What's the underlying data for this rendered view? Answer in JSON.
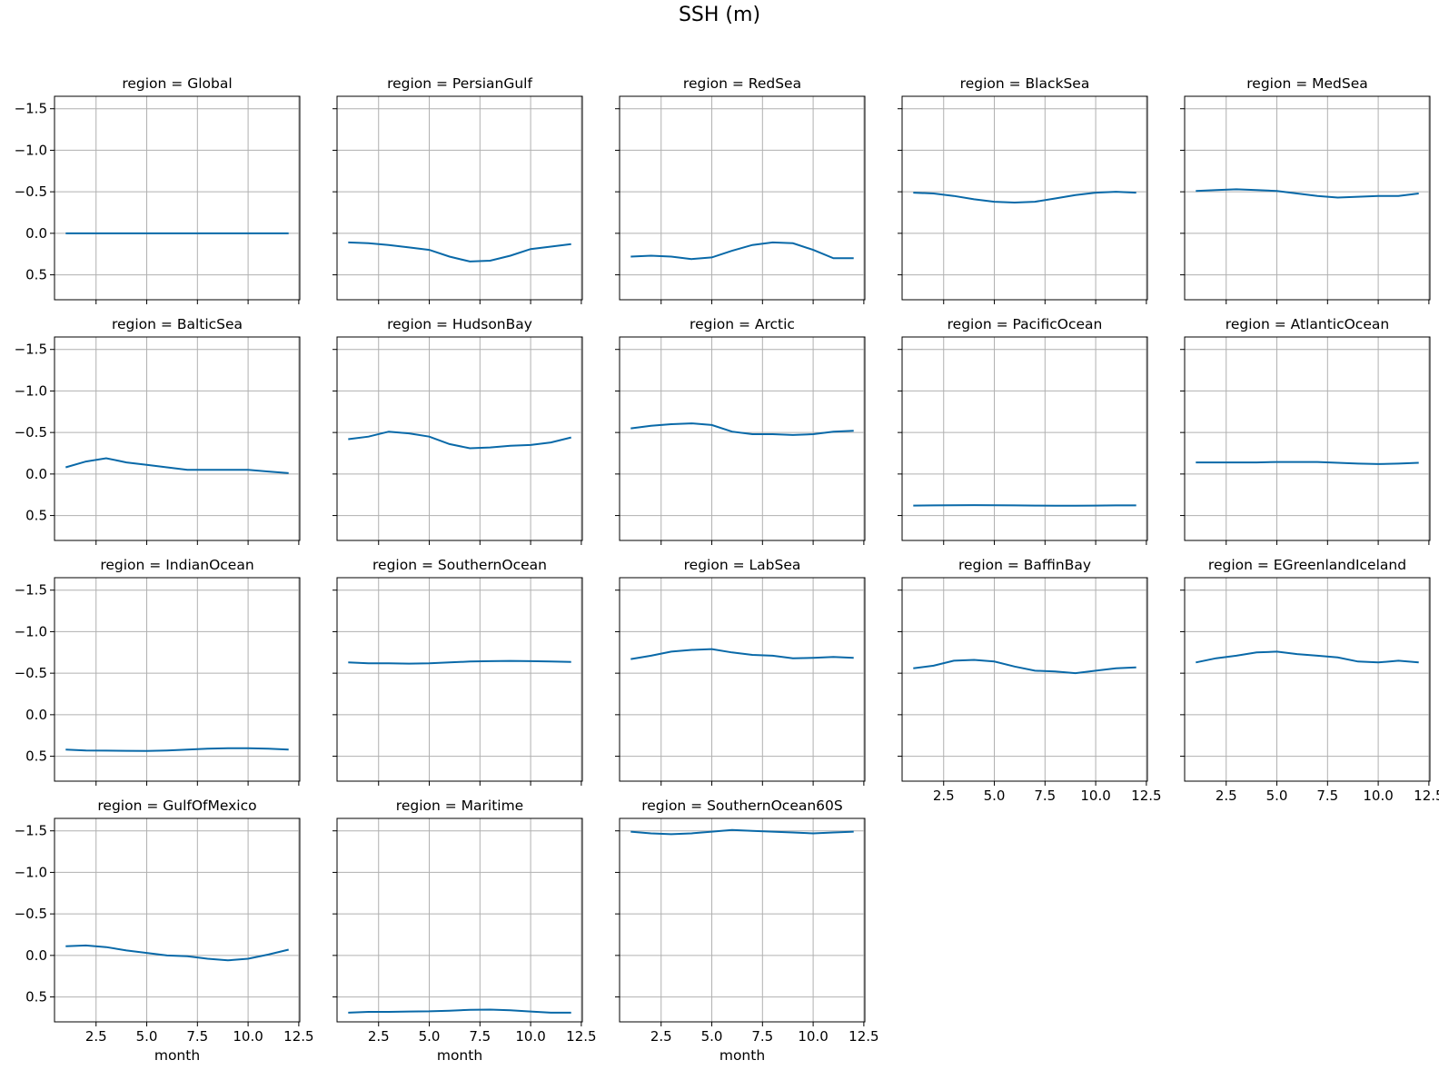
{
  "figure_title": "SSH (m)",
  "line_color": "#0969a8",
  "chart_data": [
    {
      "type": "line",
      "title": "region = Global",
      "x": [
        1,
        2,
        3,
        4,
        5,
        6,
        7,
        8,
        9,
        10,
        11,
        12
      ],
      "values": [
        0.0,
        0.0,
        0.0,
        0.0,
        0.0,
        0.0,
        0.0,
        0.0,
        0.0,
        0.0,
        0.0,
        0.0
      ],
      "xlabel": "",
      "ylabel": "",
      "xlim": [
        0.45,
        12.55
      ],
      "ylim": [
        0.8,
        -1.65
      ],
      "y_inverted": true,
      "grid": true
    },
    {
      "type": "line",
      "title": "region = PersianGulf",
      "x": [
        1,
        2,
        3,
        4,
        5,
        6,
        7,
        8,
        9,
        10,
        11,
        12
      ],
      "values": [
        0.11,
        0.12,
        0.14,
        0.17,
        0.2,
        0.28,
        0.34,
        0.33,
        0.27,
        0.19,
        0.16,
        0.13
      ],
      "xlabel": "",
      "ylabel": "",
      "xlim": [
        0.45,
        12.55
      ],
      "ylim": [
        0.8,
        -1.65
      ],
      "y_inverted": true,
      "grid": true
    },
    {
      "type": "line",
      "title": "region = RedSea",
      "x": [
        1,
        2,
        3,
        4,
        5,
        6,
        7,
        8,
        9,
        10,
        11,
        12
      ],
      "values": [
        0.28,
        0.27,
        0.28,
        0.31,
        0.29,
        0.21,
        0.14,
        0.11,
        0.12,
        0.2,
        0.3,
        0.3
      ],
      "xlabel": "",
      "ylabel": "",
      "xlim": [
        0.45,
        12.55
      ],
      "ylim": [
        0.8,
        -1.65
      ],
      "y_inverted": true,
      "grid": true
    },
    {
      "type": "line",
      "title": "region = BlackSea",
      "x": [
        1,
        2,
        3,
        4,
        5,
        6,
        7,
        8,
        9,
        10,
        11,
        12
      ],
      "values": [
        -0.49,
        -0.48,
        -0.45,
        -0.41,
        -0.38,
        -0.37,
        -0.38,
        -0.42,
        -0.46,
        -0.49,
        -0.5,
        -0.49
      ],
      "xlabel": "",
      "ylabel": "",
      "xlim": [
        0.45,
        12.55
      ],
      "ylim": [
        0.8,
        -1.65
      ],
      "y_inverted": true,
      "grid": true
    },
    {
      "type": "line",
      "title": "region = MedSea",
      "x": [
        1,
        2,
        3,
        4,
        5,
        6,
        7,
        8,
        9,
        10,
        11,
        12
      ],
      "values": [
        -0.51,
        -0.52,
        -0.53,
        -0.52,
        -0.51,
        -0.48,
        -0.45,
        -0.43,
        -0.44,
        -0.45,
        -0.45,
        -0.48
      ],
      "xlabel": "",
      "ylabel": "",
      "xlim": [
        0.45,
        12.55
      ],
      "ylim": [
        0.8,
        -1.65
      ],
      "y_inverted": true,
      "grid": true
    },
    {
      "type": "line",
      "title": "region = BalticSea",
      "x": [
        1,
        2,
        3,
        4,
        5,
        6,
        7,
        8,
        9,
        10,
        11,
        12
      ],
      "values": [
        -0.08,
        -0.15,
        -0.19,
        -0.14,
        -0.11,
        -0.08,
        -0.05,
        -0.05,
        -0.05,
        -0.05,
        -0.03,
        -0.01
      ],
      "xlabel": "",
      "ylabel": "",
      "xlim": [
        0.45,
        12.55
      ],
      "ylim": [
        0.8,
        -1.65
      ],
      "y_inverted": true,
      "grid": true
    },
    {
      "type": "line",
      "title": "region = HudsonBay",
      "x": [
        1,
        2,
        3,
        4,
        5,
        6,
        7,
        8,
        9,
        10,
        11,
        12
      ],
      "values": [
        -0.42,
        -0.45,
        -0.51,
        -0.49,
        -0.45,
        -0.36,
        -0.31,
        -0.32,
        -0.34,
        -0.35,
        -0.38,
        -0.44
      ],
      "xlabel": "",
      "ylabel": "",
      "xlim": [
        0.45,
        12.55
      ],
      "ylim": [
        0.8,
        -1.65
      ],
      "y_inverted": true,
      "grid": true
    },
    {
      "type": "line",
      "title": "region = Arctic",
      "x": [
        1,
        2,
        3,
        4,
        5,
        6,
        7,
        8,
        9,
        10,
        11,
        12
      ],
      "values": [
        -0.55,
        -0.58,
        -0.6,
        -0.61,
        -0.59,
        -0.51,
        -0.48,
        -0.48,
        -0.47,
        -0.48,
        -0.51,
        -0.52
      ],
      "xlabel": "",
      "ylabel": "",
      "xlim": [
        0.45,
        12.55
      ],
      "ylim": [
        0.8,
        -1.65
      ],
      "y_inverted": true,
      "grid": true
    },
    {
      "type": "line",
      "title": "region = PacificOcean",
      "x": [
        1,
        2,
        3,
        4,
        5,
        6,
        7,
        8,
        9,
        10,
        11,
        12
      ],
      "values": [
        0.38,
        0.378,
        0.376,
        0.375,
        0.377,
        0.378,
        0.38,
        0.382,
        0.382,
        0.38,
        0.378,
        0.378
      ],
      "xlabel": "",
      "ylabel": "",
      "xlim": [
        0.45,
        12.55
      ],
      "ylim": [
        0.8,
        -1.65
      ],
      "y_inverted": true,
      "grid": true
    },
    {
      "type": "line",
      "title": "region = AtlanticOcean",
      "x": [
        1,
        2,
        3,
        4,
        5,
        6,
        7,
        8,
        9,
        10,
        11,
        12
      ],
      "values": [
        -0.14,
        -0.14,
        -0.14,
        -0.14,
        -0.145,
        -0.145,
        -0.145,
        -0.135,
        -0.125,
        -0.12,
        -0.125,
        -0.135
      ],
      "xlabel": "",
      "ylabel": "",
      "xlim": [
        0.45,
        12.55
      ],
      "ylim": [
        0.8,
        -1.65
      ],
      "y_inverted": true,
      "grid": true
    },
    {
      "type": "line",
      "title": "region = IndianOcean",
      "x": [
        1,
        2,
        3,
        4,
        5,
        6,
        7,
        8,
        9,
        10,
        11,
        12
      ],
      "values": [
        0.42,
        0.43,
        0.433,
        0.435,
        0.436,
        0.43,
        0.42,
        0.41,
        0.403,
        0.403,
        0.41,
        0.42
      ],
      "xlabel": "",
      "ylabel": "",
      "xlim": [
        0.45,
        12.55
      ],
      "ylim": [
        0.8,
        -1.65
      ],
      "y_inverted": true,
      "grid": true
    },
    {
      "type": "line",
      "title": "region = SouthernOcean",
      "x": [
        1,
        2,
        3,
        4,
        5,
        6,
        7,
        8,
        9,
        10,
        11,
        12
      ],
      "values": [
        -0.63,
        -0.62,
        -0.62,
        -0.615,
        -0.62,
        -0.63,
        -0.64,
        -0.645,
        -0.648,
        -0.645,
        -0.64,
        -0.635
      ],
      "xlabel": "",
      "ylabel": "",
      "xlim": [
        0.45,
        12.55
      ],
      "ylim": [
        0.8,
        -1.65
      ],
      "y_inverted": true,
      "grid": true
    },
    {
      "type": "line",
      "title": "region = LabSea",
      "x": [
        1,
        2,
        3,
        4,
        5,
        6,
        7,
        8,
        9,
        10,
        11,
        12
      ],
      "values": [
        -0.67,
        -0.71,
        -0.76,
        -0.78,
        -0.79,
        -0.75,
        -0.72,
        -0.71,
        -0.68,
        -0.685,
        -0.695,
        -0.685
      ],
      "xlabel": "",
      "ylabel": "",
      "xlim": [
        0.45,
        12.55
      ],
      "ylim": [
        0.8,
        -1.65
      ],
      "y_inverted": true,
      "grid": true
    },
    {
      "type": "line",
      "title": "region = BaffinBay",
      "x": [
        1,
        2,
        3,
        4,
        5,
        6,
        7,
        8,
        9,
        10,
        11,
        12
      ],
      "values": [
        -0.56,
        -0.59,
        -0.65,
        -0.66,
        -0.64,
        -0.58,
        -0.53,
        -0.52,
        -0.5,
        -0.53,
        -0.56,
        -0.57
      ],
      "xlabel": "",
      "ylabel": "",
      "xlim": [
        0.45,
        12.55
      ],
      "ylim": [
        0.8,
        -1.65
      ],
      "y_inverted": true,
      "grid": true
    },
    {
      "type": "line",
      "title": "region = EGreenlandIceland",
      "x": [
        1,
        2,
        3,
        4,
        5,
        6,
        7,
        8,
        9,
        10,
        11,
        12
      ],
      "values": [
        -0.63,
        -0.68,
        -0.71,
        -0.75,
        -0.76,
        -0.73,
        -0.71,
        -0.69,
        -0.64,
        -0.63,
        -0.65,
        -0.63
      ],
      "xlabel": "",
      "ylabel": "",
      "xlim": [
        0.45,
        12.55
      ],
      "ylim": [
        0.8,
        -1.65
      ],
      "y_inverted": true,
      "grid": true
    },
    {
      "type": "line",
      "title": "region = GulfOfMexico",
      "x": [
        1,
        2,
        3,
        4,
        5,
        6,
        7,
        8,
        9,
        10,
        11,
        12
      ],
      "values": [
        -0.11,
        -0.12,
        -0.1,
        -0.06,
        -0.03,
        0.0,
        0.01,
        0.04,
        0.06,
        0.04,
        -0.01,
        -0.07
      ],
      "xlabel": "month",
      "ylabel": "",
      "xlim": [
        0.45,
        12.55
      ],
      "ylim": [
        0.8,
        -1.65
      ],
      "y_inverted": true,
      "grid": true
    },
    {
      "type": "line",
      "title": "region = Maritime",
      "x": [
        1,
        2,
        3,
        4,
        5,
        6,
        7,
        8,
        9,
        10,
        11,
        12
      ],
      "values": [
        0.69,
        0.68,
        0.68,
        0.675,
        0.673,
        0.665,
        0.655,
        0.652,
        0.66,
        0.675,
        0.69,
        0.69
      ],
      "xlabel": "month",
      "ylabel": "",
      "xlim": [
        0.45,
        12.55
      ],
      "ylim": [
        0.8,
        -1.65
      ],
      "y_inverted": true,
      "grid": true
    },
    {
      "type": "line",
      "title": "region = SouthernOcean60S",
      "x": [
        1,
        2,
        3,
        4,
        5,
        6,
        7,
        8,
        9,
        10,
        11,
        12
      ],
      "values": [
        -1.49,
        -1.47,
        -1.46,
        -1.47,
        -1.49,
        -1.51,
        -1.5,
        -1.49,
        -1.48,
        -1.47,
        -1.48,
        -1.49
      ],
      "xlabel": "month",
      "ylabel": "",
      "xlim": [
        0.45,
        12.55
      ],
      "ylim": [
        0.8,
        -1.65
      ],
      "y_inverted": true,
      "grid": true
    }
  ],
  "x_tick_values": [
    2.5,
    5.0,
    7.5,
    10.0,
    12.5
  ],
  "x_tick_labels": [
    "2.5",
    "5.0",
    "7.5",
    "10.0",
    "12.5"
  ],
  "y_tick_values": [
    -1.5,
    -1.0,
    -0.5,
    0.0,
    0.5
  ],
  "y_tick_labels": [
    "−1.5",
    "−1.0",
    "−0.5",
    "0.0",
    "0.5"
  ]
}
